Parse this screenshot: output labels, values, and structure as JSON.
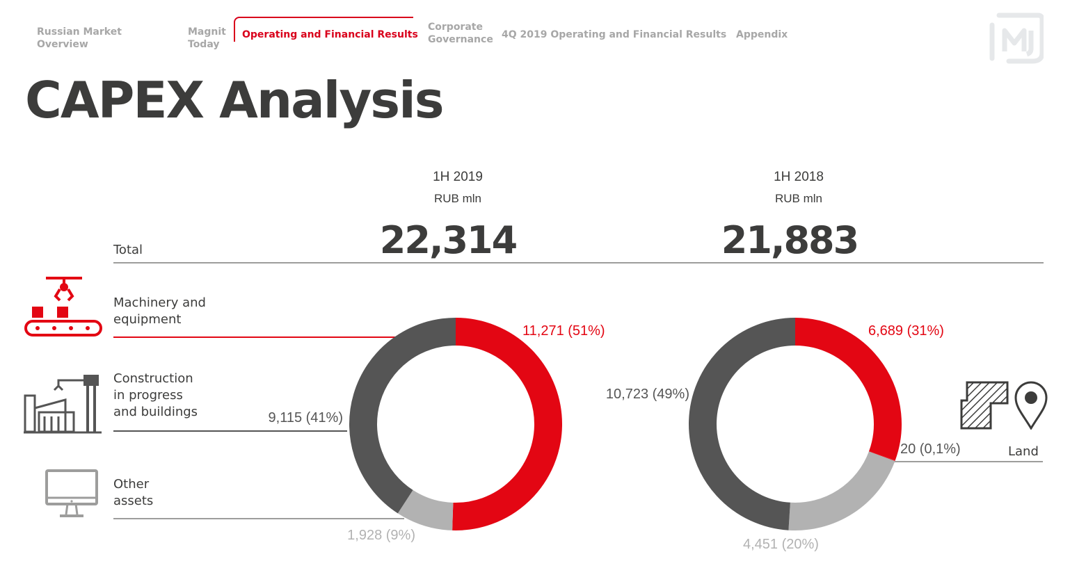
{
  "nav": {
    "items": [
      {
        "label": "Russian Market\nOverview"
      },
      {
        "label": "Magnit\nToday"
      },
      {
        "label": "Operating and Financial Results",
        "active": true
      },
      {
        "label": "Corporate\nGovernance"
      },
      {
        "label": "4Q 2019 Operating and Financial Results"
      },
      {
        "label": "Appendix"
      }
    ]
  },
  "page_title": "CAPEX Analysis",
  "rows": {
    "total": "Total",
    "machinery": "Machinery and\nequipment",
    "construction": "Construction\nin progress\nand buildings",
    "other": "Other\nassets",
    "land": "Land"
  },
  "columns": [
    {
      "period": "1H 2019",
      "unit": "RUB mln",
      "total": "22,314"
    },
    {
      "period": "1H 2018",
      "unit": "RUB mln",
      "total": "21,883"
    }
  ],
  "icons": {
    "machinery": "conveyor-robot-icon",
    "construction": "factory-crane-icon",
    "other": "monitor-icon",
    "land": "land-plot-pin-icon",
    "logo": "magnit-logo-icon"
  },
  "colors": {
    "accent": "#e30613",
    "dark": "#555555",
    "light": "#b2b2b2",
    "text": "#3c3c3b",
    "nav_inactive": "#a7a7a7"
  },
  "chart_data": [
    {
      "type": "pie",
      "variant": "donut",
      "period": "1H 2019",
      "unit": "RUB mln",
      "total": 22314,
      "slices": [
        {
          "category": "Machinery and equipment",
          "value": 11271,
          "share": 51,
          "label": "11,271 (51%)",
          "color": "#e30613"
        },
        {
          "category": "Other assets",
          "value": 1928,
          "share": 9,
          "label": "1,928 (9%)",
          "color": "#b2b2b2"
        },
        {
          "category": "Construction in progress and buildings",
          "value": 9115,
          "share": 41,
          "label": "9,115 (41%)",
          "color": "#555555"
        }
      ]
    },
    {
      "type": "pie",
      "variant": "donut",
      "period": "1H 2018",
      "unit": "RUB mln",
      "total": 21883,
      "slices": [
        {
          "category": "Machinery and equipment",
          "value": 6689,
          "share": 31,
          "label": "6,689 (31%)",
          "color": "#e30613"
        },
        {
          "category": "Land",
          "value": 20,
          "share": 0.1,
          "label": "20 (0,1%)",
          "color": "#e30613"
        },
        {
          "category": "Other assets",
          "value": 4451,
          "share": 20,
          "label": "4,451 (20%)",
          "color": "#b2b2b2"
        },
        {
          "category": "Construction in progress and buildings",
          "value": 10723,
          "share": 49,
          "label": "10,723 (49%)",
          "color": "#555555"
        }
      ]
    }
  ]
}
